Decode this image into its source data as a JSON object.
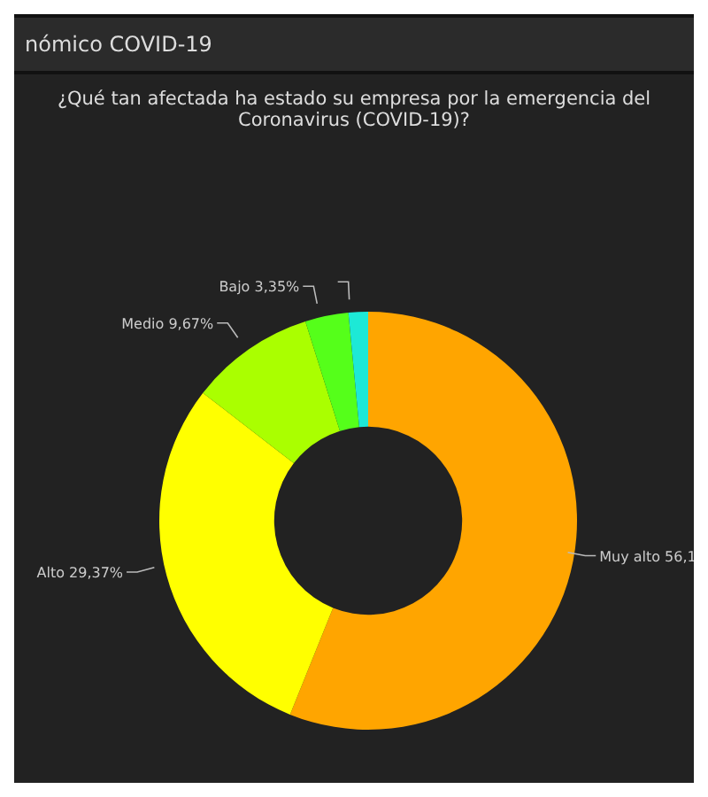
{
  "chart_data": {
    "type": "donut",
    "title": "nómico COVID-19",
    "subtitle": "¿Qué tan afectada ha estado su empresa por la emergencia del Coronavirus (COVID-19)?",
    "categories": [
      "Muy alto",
      "Alto",
      "Medio",
      "Bajo",
      null
    ],
    "values": [
      56.1,
      29.37,
      9.67,
      3.35,
      1.51
    ],
    "value_labels": [
      "56,1",
      "29,37%",
      "9,67%",
      "3,35%",
      null
    ],
    "colors": [
      "#ffa500",
      "#ffff00",
      "#aaff00",
      "#55ff1a",
      "#1de9d6"
    ]
  }
}
